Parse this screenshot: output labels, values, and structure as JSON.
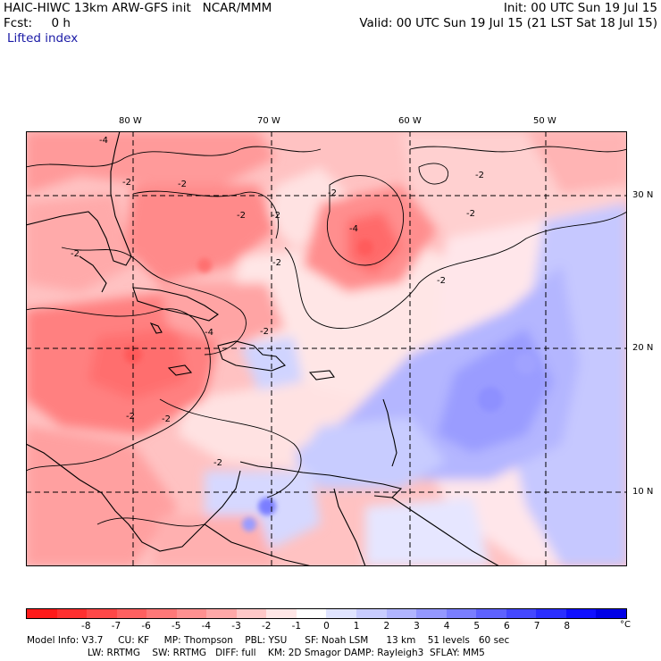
{
  "header": {
    "title_left": "HAIC-HIWC 13km ARW-GFS init   NCAR/MMM",
    "init": "Init: 00 UTC Sun 19 Jul 15",
    "fcst": "Fcst:     0 h",
    "valid": "Valid: 00 UTC Sun 19 Jul 15 (21 LST Sat 18 Jul 15)",
    "field": "Lifted index"
  },
  "map": {
    "lon_labels": [
      "80 W",
      "70 W",
      "60 W",
      "50 W"
    ],
    "lat_labels": [
      "30 N",
      "20 N",
      "10 N"
    ],
    "contour_labels": [
      "-4",
      "-2",
      "-2",
      "-2",
      "-2",
      "-2",
      "-2",
      "-2",
      "-2",
      "-4",
      "-2",
      "-2",
      "-2",
      "-2",
      "-4",
      "-2",
      "-2"
    ]
  },
  "colorbar": {
    "colors": [
      "#ff1a1a",
      "#ff3030",
      "#ff4848",
      "#ff6060",
      "#ff7878",
      "#ff9090",
      "#ffa8a8",
      "#ffc8c8",
      "#ffe6e6",
      "#ffffff",
      "#e0e4ff",
      "#c8ccff",
      "#b0b4ff",
      "#9498ff",
      "#7a7eff",
      "#5e62ff",
      "#4448ff",
      "#2a2eff",
      "#1010ff",
      "#0000e6"
    ],
    "ticks": [
      "-8",
      "-7",
      "-6",
      "-5",
      "-4",
      "-3",
      "-2",
      "-1",
      "0",
      "1",
      "2",
      "3",
      "4",
      "5",
      "6",
      "7",
      "8"
    ],
    "unit": "°C"
  },
  "model_info": {
    "line1": "Model Info: V3.7     CU: KF     MP: Thompson    PBL: YSU      SF: Noah LSM      13 km    51 levels   60 sec",
    "line2": "LW: RRTMG    SW: RRTMG   DIFF: full    KM: 2D Smagor DAMP: Rayleigh3  SFLAY: MM5"
  }
}
